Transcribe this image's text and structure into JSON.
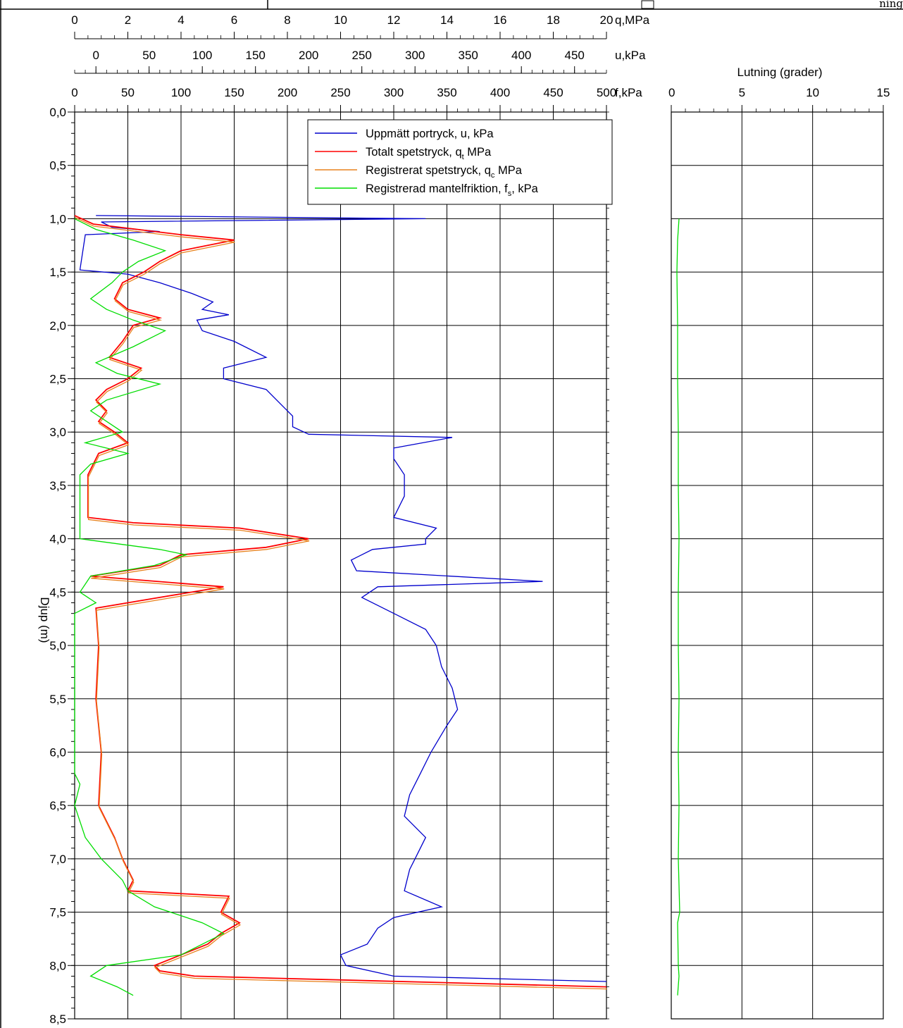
{
  "header": {
    "title_fragment": "ning"
  },
  "chart_data": [
    {
      "type": "line",
      "title": "",
      "ylabel": "Djup (m)",
      "ylim": [
        0,
        8.5
      ],
      "y_inverted": true,
      "yticks": [
        "0,0",
        "0,5",
        "1,0",
        "1,5",
        "2,0",
        "2,5",
        "3,0",
        "3,5",
        "4,0",
        "4,5",
        "5,0",
        "5,5",
        "6,0",
        "6,5",
        "7,0",
        "7,5",
        "8,0",
        "8,5"
      ],
      "axes": [
        {
          "id": "q",
          "label": "q,MPa",
          "range": [
            0,
            20
          ],
          "ticks": [
            "0",
            "2",
            "4",
            "6",
            "8",
            "10",
            "12",
            "14",
            "16",
            "18",
            "20"
          ]
        },
        {
          "id": "u",
          "label": "u,kPa",
          "range": [
            -20,
            480
          ],
          "ticks": [
            "0",
            "50",
            "100",
            "150",
            "200",
            "250",
            "300",
            "350",
            "400",
            "450"
          ]
        },
        {
          "id": "f",
          "label": "f,kPa",
          "range": [
            0,
            500
          ],
          "ticks": [
            "0",
            "50",
            "100",
            "150",
            "200",
            "250",
            "300",
            "350",
            "400",
            "450",
            "500"
          ]
        }
      ],
      "grid": true,
      "legend_position": "top-right",
      "legend": [
        {
          "text": "Uppmätt portryck, u, kPa"
        },
        {
          "text": "Totalt spetstryck, q",
          "sub": "t",
          "tail": "  MPa"
        },
        {
          "text": "Registrerat spetstryck, q",
          "sub": "c",
          "tail": "  MPa"
        },
        {
          "text": "Registrerad mantelfriktion, f",
          "sub": "s",
          "tail": ", kPa"
        }
      ],
      "series": [
        {
          "name": "Uppmätt portryck, u, kPa",
          "axis": "u",
          "color": "#0000cc",
          "points": [
            [
              0.97,
              0
            ],
            [
              1.0,
              310
            ],
            [
              1.03,
              5
            ],
            [
              1.08,
              15
            ],
            [
              1.12,
              60
            ],
            [
              1.15,
              -10
            ],
            [
              1.48,
              -15
            ],
            [
              1.52,
              30
            ],
            [
              1.6,
              60
            ],
            [
              1.7,
              90
            ],
            [
              1.78,
              110
            ],
            [
              1.85,
              100
            ],
            [
              1.9,
              125
            ],
            [
              1.95,
              95
            ],
            [
              2.05,
              100
            ],
            [
              2.15,
              130
            ],
            [
              2.3,
              160
            ],
            [
              2.4,
              120
            ],
            [
              2.5,
              120
            ],
            [
              2.6,
              160
            ],
            [
              2.75,
              175
            ],
            [
              2.85,
              185
            ],
            [
              2.95,
              185
            ],
            [
              3.02,
              200
            ],
            [
              3.05,
              335
            ],
            [
              3.15,
              280
            ],
            [
              3.25,
              280
            ],
            [
              3.4,
              290
            ],
            [
              3.6,
              290
            ],
            [
              3.8,
              280
            ],
            [
              3.9,
              320
            ],
            [
              4.0,
              310
            ],
            [
              4.05,
              310
            ],
            [
              4.1,
              260
            ],
            [
              4.2,
              240
            ],
            [
              4.3,
              245
            ],
            [
              4.4,
              420
            ],
            [
              4.45,
              265
            ],
            [
              4.55,
              250
            ],
            [
              4.7,
              280
            ],
            [
              4.85,
              310
            ],
            [
              5.0,
              320
            ],
            [
              5.2,
              325
            ],
            [
              5.4,
              335
            ],
            [
              5.6,
              340
            ],
            [
              5.75,
              330
            ],
            [
              6.0,
              315
            ],
            [
              6.2,
              305
            ],
            [
              6.4,
              295
            ],
            [
              6.6,
              290
            ],
            [
              6.8,
              310
            ],
            [
              7.0,
              300
            ],
            [
              7.1,
              295
            ],
            [
              7.3,
              290
            ],
            [
              7.45,
              325
            ],
            [
              7.55,
              280
            ],
            [
              7.65,
              265
            ],
            [
              7.8,
              255
            ],
            [
              7.9,
              230
            ],
            [
              8.0,
              235
            ],
            [
              8.1,
              280
            ],
            [
              8.15,
              480
            ]
          ]
        },
        {
          "name": "Totalt spetstryck, qt  MPa",
          "axis": "q",
          "color": "#ff0000",
          "points": [
            [
              0.97,
              0
            ],
            [
              1.05,
              0.7
            ],
            [
              1.15,
              4.0
            ],
            [
              1.2,
              6.0
            ],
            [
              1.3,
              4.0
            ],
            [
              1.4,
              3.2
            ],
            [
              1.5,
              2.6
            ],
            [
              1.6,
              1.8
            ],
            [
              1.75,
              1.5
            ],
            [
              1.85,
              2.0
            ],
            [
              1.93,
              3.2
            ],
            [
              2.0,
              2.2
            ],
            [
              2.15,
              1.8
            ],
            [
              2.3,
              1.3
            ],
            [
              2.4,
              2.5
            ],
            [
              2.5,
              2.0
            ],
            [
              2.6,
              1.2
            ],
            [
              2.7,
              0.8
            ],
            [
              2.8,
              1.2
            ],
            [
              2.9,
              0.9
            ],
            [
              3.0,
              1.5
            ],
            [
              3.1,
              2.0
            ],
            [
              3.2,
              0.9
            ],
            [
              3.4,
              0.5
            ],
            [
              3.6,
              0.5
            ],
            [
              3.8,
              0.5
            ],
            [
              3.85,
              2.2
            ],
            [
              3.9,
              6.2
            ],
            [
              4.0,
              8.8
            ],
            [
              4.08,
              7.2
            ],
            [
              4.15,
              4.0
            ],
            [
              4.25,
              3.2
            ],
            [
              4.35,
              0.6
            ],
            [
              4.45,
              5.6
            ],
            [
              4.55,
              3.2
            ],
            [
              4.65,
              0.8
            ],
            [
              5.0,
              0.9
            ],
            [
              5.5,
              0.8
            ],
            [
              6.0,
              1.0
            ],
            [
              6.5,
              0.9
            ],
            [
              6.8,
              1.5
            ],
            [
              7.0,
              1.8
            ],
            [
              7.2,
              2.2
            ],
            [
              7.3,
              2.0
            ],
            [
              7.35,
              5.8
            ],
            [
              7.5,
              5.5
            ],
            [
              7.6,
              6.2
            ],
            [
              7.7,
              5.5
            ],
            [
              7.8,
              5.0
            ],
            [
              7.9,
              4.0
            ],
            [
              8.0,
              3.0
            ],
            [
              8.05,
              3.2
            ],
            [
              8.1,
              4.5
            ],
            [
              8.2,
              20
            ]
          ]
        },
        {
          "name": "Registrerat spetstryck, qc  MPa",
          "axis": "q",
          "color": "#e8821e",
          "offset": [
            0.02,
            0.02
          ]
        },
        {
          "name": "Registrerad mantelfriktion, fs, kPa",
          "axis": "f",
          "color": "#00dd00",
          "points": [
            [
              1.0,
              0
            ],
            [
              1.1,
              20
            ],
            [
              1.2,
              55
            ],
            [
              1.3,
              85
            ],
            [
              1.4,
              60
            ],
            [
              1.5,
              45
            ],
            [
              1.6,
              35
            ],
            [
              1.75,
              15
            ],
            [
              1.85,
              30
            ],
            [
              1.95,
              55
            ],
            [
              2.05,
              85
            ],
            [
              2.2,
              55
            ],
            [
              2.35,
              20
            ],
            [
              2.45,
              40
            ],
            [
              2.55,
              80
            ],
            [
              2.7,
              30
            ],
            [
              2.8,
              15
            ],
            [
              2.9,
              30
            ],
            [
              3.0,
              45
            ],
            [
              3.1,
              10
            ],
            [
              3.2,
              50
            ],
            [
              3.3,
              15
            ],
            [
              3.4,
              5
            ],
            [
              4.0,
              5
            ],
            [
              4.1,
              80
            ],
            [
              4.15,
              105
            ],
            [
              4.25,
              75
            ],
            [
              4.35,
              15
            ],
            [
              4.5,
              5
            ],
            [
              4.6,
              20
            ],
            [
              4.7,
              0
            ],
            [
              6.2,
              0
            ],
            [
              6.3,
              5
            ],
            [
              6.5,
              0
            ],
            [
              6.8,
              10
            ],
            [
              7.0,
              25
            ],
            [
              7.2,
              45
            ],
            [
              7.3,
              50
            ],
            [
              7.45,
              75
            ],
            [
              7.6,
              120
            ],
            [
              7.7,
              140
            ],
            [
              7.75,
              130
            ],
            [
              7.9,
              100
            ],
            [
              8.0,
              30
            ],
            [
              8.1,
              15
            ],
            [
              8.2,
              40
            ],
            [
              8.28,
              55
            ]
          ]
        }
      ]
    },
    {
      "type": "line",
      "title": "",
      "xlabel": "Lutning (grader)",
      "xlim": [
        0,
        15
      ],
      "xticks": [
        "0",
        "5",
        "10",
        "15"
      ],
      "ylim": [
        0,
        8.5
      ],
      "y_inverted": true,
      "grid": true,
      "series": [
        {
          "color": "#00dd00",
          "points": [
            [
              1.0,
              0.55
            ],
            [
              1.2,
              0.45
            ],
            [
              1.5,
              0.4
            ],
            [
              2.0,
              0.45
            ],
            [
              2.5,
              0.45
            ],
            [
              3.0,
              0.5
            ],
            [
              3.5,
              0.5
            ],
            [
              4.0,
              0.55
            ],
            [
              4.5,
              0.5
            ],
            [
              5.0,
              0.5
            ],
            [
              5.5,
              0.55
            ],
            [
              6.0,
              0.5
            ],
            [
              6.5,
              0.55
            ],
            [
              7.0,
              0.5
            ],
            [
              7.5,
              0.6
            ],
            [
              7.6,
              0.45
            ],
            [
              8.0,
              0.5
            ],
            [
              8.1,
              0.55
            ],
            [
              8.28,
              0.45
            ]
          ]
        }
      ]
    }
  ]
}
